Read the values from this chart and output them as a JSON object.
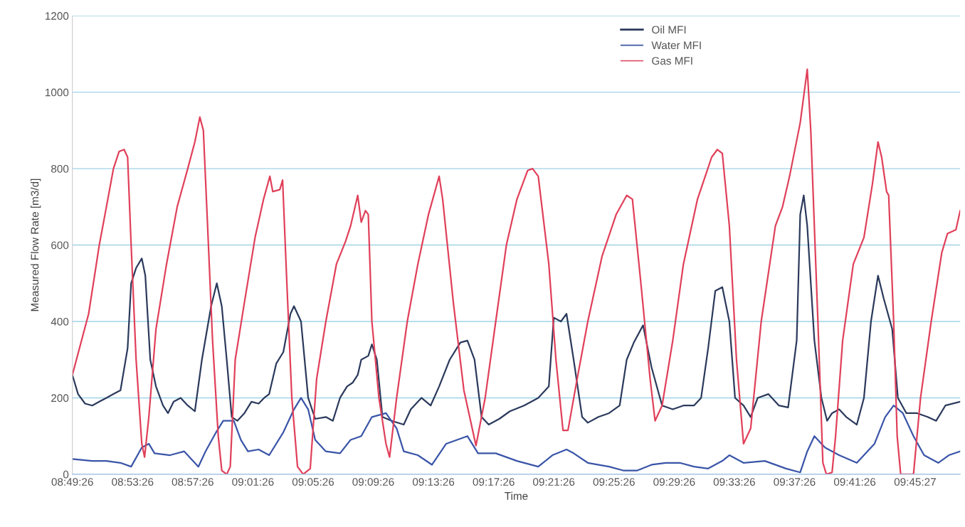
{
  "chart_data": {
    "type": "line",
    "xlabel": "Time",
    "ylabel": "Measured Flow Rate [m3/d]",
    "xlim": [
      8.8239,
      9.8074
    ],
    "ylim": [
      0,
      1200
    ],
    "yticks": [
      0,
      200,
      400,
      600,
      800,
      1000,
      1200
    ],
    "xticks": [
      {
        "value": 8.8239,
        "label": "08:49:26"
      },
      {
        "value": 8.8906,
        "label": "08:53:26"
      },
      {
        "value": 8.9572,
        "label": "08:57:26"
      },
      {
        "value": 9.0239,
        "label": "09:01:26"
      },
      {
        "value": 9.0906,
        "label": "09:05:26"
      },
      {
        "value": 9.1572,
        "label": "09:09:26"
      },
      {
        "value": 9.2239,
        "label": "09:13:26"
      },
      {
        "value": 9.2906,
        "label": "09:17:26"
      },
      {
        "value": 9.3572,
        "label": "09:21:26"
      },
      {
        "value": 9.4239,
        "label": "09:25:26"
      },
      {
        "value": 9.4906,
        "label": "09:29:26"
      },
      {
        "value": 9.5572,
        "label": "09:33:26"
      },
      {
        "value": 9.6239,
        "label": "09:37:26"
      },
      {
        "value": 9.6906,
        "label": "09:41:26"
      },
      {
        "value": 9.7575,
        "label": "09:45:27"
      }
    ],
    "grid": "y",
    "legend": "top right",
    "marker": "none",
    "line_style": "solid",
    "series": [
      {
        "name": "Oil MFI",
        "color": "#2b3a5c",
        "x": [
          8.8239,
          8.8302,
          8.838,
          8.8459,
          8.8537,
          8.8616,
          8.8694,
          8.8772,
          8.8851,
          8.889,
          8.8945,
          8.9008,
          8.9047,
          8.9102,
          8.9165,
          8.9243,
          8.9298,
          8.9361,
          8.9439,
          8.9517,
          8.9596,
          8.9674,
          8.9776,
          8.9839,
          8.9894,
          8.9949,
          9.0004,
          9.0066,
          9.0145,
          9.0223,
          9.0302,
          9.0364,
          9.0419,
          9.0498,
          9.0576,
          9.0655,
          9.0694,
          9.0772,
          9.0851,
          9.0929,
          9.1047,
          9.1125,
          9.1204,
          9.1282,
          9.1345,
          9.14,
          9.1439,
          9.1517,
          9.1557,
          9.1612,
          9.1674,
          9.1776,
          9.191,
          9.1988,
          9.2106,
          9.2208,
          9.2302,
          9.2419,
          9.2537,
          9.2615,
          9.2694,
          9.2772,
          9.2851,
          9.2968,
          9.3086,
          9.3243,
          9.34,
          9.3517,
          9.3572,
          9.3651,
          9.3713,
          9.3792,
          9.3886,
          9.3949,
          9.4066,
          9.4184,
          9.4302,
          9.438,
          9.4459,
          9.4561,
          9.4655,
          9.4772,
          9.489,
          9.5008,
          9.5125,
          9.5204,
          9.5282,
          9.5361,
          9.5439,
          9.5517,
          9.558,
          9.5674,
          9.5753,
          9.5831,
          9.5949,
          9.6066,
          9.6168,
          9.6263,
          9.6302,
          9.6341,
          9.638,
          9.6459,
          9.6537,
          9.66,
          9.6655,
          9.6733,
          9.6812,
          9.6929,
          9.7008,
          9.7086,
          9.7164,
          9.7227,
          9.7321,
          9.7384,
          9.7478,
          9.7596,
          9.7714,
          9.7808,
          9.791,
          9.8074
        ],
        "values": [
          260,
          210,
          185,
          180,
          190,
          200,
          210,
          220,
          330,
          500,
          540,
          565,
          520,
          300,
          230,
          180,
          160,
          190,
          200,
          180,
          165,
          300,
          440,
          500,
          440,
          300,
          150,
          140,
          160,
          190,
          185,
          200,
          210,
          290,
          320,
          420,
          440,
          400,
          200,
          145,
          150,
          140,
          200,
          230,
          240,
          260,
          300,
          310,
          340,
          300,
          150,
          140,
          130,
          170,
          200,
          180,
          230,
          300,
          345,
          350,
          300,
          150,
          130,
          145,
          165,
          180,
          200,
          230,
          410,
          400,
          420,
          300,
          150,
          135,
          150,
          160,
          180,
          300,
          345,
          390,
          280,
          180,
          170,
          180,
          180,
          200,
          330,
          480,
          490,
          400,
          200,
          180,
          150,
          200,
          210,
          180,
          175,
          350,
          680,
          730,
          650,
          350,
          200,
          140,
          160,
          170,
          150,
          130,
          200,
          400,
          520,
          460,
          380,
          200,
          160,
          160,
          150,
          140,
          180,
          190
        ]
      },
      {
        "name": "Water MFI",
        "color": "#3a55a8",
        "x": [
          8.8239,
          8.8459,
          8.8616,
          8.8772,
          8.889,
          8.9008,
          8.9086,
          8.9149,
          8.9321,
          8.9478,
          8.9635,
          8.9714,
          8.9831,
          8.991,
          9.0027,
          9.0106,
          9.0184,
          9.0302,
          9.0419,
          9.0576,
          9.0694,
          9.0772,
          9.0851,
          9.0929,
          9.1047,
          9.1204,
          9.1321,
          9.1439,
          9.1557,
          9.1713,
          9.1831,
          9.191,
          9.2066,
          9.2223,
          9.238,
          9.2615,
          9.2733,
          9.2929,
          9.3164,
          9.34,
          9.3557,
          9.3713,
          9.3792,
          9.3949,
          9.4184,
          9.4341,
          9.4498,
          9.4655,
          9.4812,
          9.4968,
          9.5125,
          9.5282,
          9.5439,
          9.5517,
          9.5674,
          9.591,
          9.6145,
          9.6302,
          9.638,
          9.6459,
          9.6576,
          9.6733,
          9.6929,
          9.7125,
          9.7243,
          9.7337,
          9.7439,
          9.7557,
          9.7674,
          9.7831,
          9.7949,
          9.8074
        ],
        "values": [
          40,
          35,
          35,
          30,
          20,
          70,
          80,
          55,
          50,
          60,
          20,
          60,
          110,
          140,
          140,
          90,
          60,
          65,
          50,
          110,
          170,
          200,
          170,
          90,
          60,
          55,
          90,
          100,
          150,
          160,
          120,
          60,
          50,
          25,
          80,
          100,
          55,
          55,
          35,
          20,
          50,
          65,
          55,
          30,
          20,
          10,
          10,
          25,
          30,
          30,
          20,
          15,
          35,
          50,
          30,
          35,
          15,
          5,
          60,
          100,
          70,
          50,
          30,
          80,
          150,
          180,
          160,
          100,
          50,
          30,
          50,
          60
        ]
      },
      {
        "name": "Gas MFI",
        "color": "#e0405a",
        "x": [
          8.8239,
          8.8419,
          8.8537,
          8.8616,
          8.8694,
          8.8757,
          8.8812,
          8.8851,
          8.889,
          8.8945,
          8.9008,
          8.9039,
          8.9086,
          8.9165,
          8.9282,
          8.94,
          8.9517,
          8.9596,
          8.9651,
          8.969,
          8.9737,
          8.9792,
          8.9855,
          8.9894,
          8.9949,
          8.9988,
          9.0043,
          9.0145,
          9.0263,
          9.0357,
          9.0427,
          9.0459,
          9.0537,
          9.0568,
          9.0615,
          9.067,
          9.0733,
          9.0796,
          9.0874,
          9.0945,
          9.1047,
          9.1164,
          9.1266,
          9.1321,
          9.14,
          9.1439,
          9.1486,
          9.1517,
          9.1557,
          9.1635,
          9.1713,
          9.1753,
          9.1831,
          9.1949,
          9.2066,
          9.2184,
          9.2302,
          9.2341,
          9.2459,
          9.2576,
          9.271,
          9.2812,
          9.2929,
          9.3047,
          9.3164,
          9.3282,
          9.3337,
          9.34,
          9.3517,
          9.3596,
          9.3674,
          9.3729,
          9.3831,
          9.3949,
          9.4106,
          9.4263,
          9.438,
          9.4443,
          9.4537,
          9.4639,
          9.4694,
          9.4772,
          9.489,
          9.5008,
          9.5164,
          9.5321,
          9.5384,
          9.5439,
          9.5517,
          9.5596,
          9.5674,
          9.5753,
          9.587,
          9.6027,
          9.6106,
          9.6184,
          9.6302,
          9.638,
          9.6419,
          9.6498,
          9.6553,
          9.6592,
          9.6655,
          9.6694,
          9.6772,
          9.689,
          9.7008,
          9.7102,
          9.7164,
          9.7204,
          9.7259,
          9.7282,
          9.7337,
          9.7376,
          9.7415,
          9.7557,
          9.7635,
          9.7753,
          9.787,
          9.7933,
          9.8027,
          9.8074
        ],
        "values": [
          260,
          420,
          600,
          700,
          800,
          845,
          850,
          830,
          600,
          300,
          80,
          45,
          150,
          380,
          550,
          700,
          800,
          870,
          935,
          900,
          650,
          350,
          100,
          10,
          0,
          20,
          300,
          450,
          620,
          720,
          780,
          740,
          745,
          770,
          500,
          200,
          20,
          0,
          15,
          250,
          400,
          550,
          610,
          650,
          730,
          660,
          690,
          680,
          400,
          200,
          80,
          45,
          200,
          400,
          550,
          680,
          780,
          720,
          450,
          220,
          75,
          200,
          400,
          600,
          720,
          795,
          800,
          780,
          550,
          300,
          115,
          115,
          250,
          400,
          570,
          680,
          730,
          720,
          500,
          250,
          140,
          180,
          350,
          550,
          720,
          830,
          850,
          840,
          650,
          300,
          80,
          120,
          400,
          650,
          700,
          780,
          920,
          1060,
          900,
          400,
          30,
          0,
          5,
          100,
          350,
          550,
          620,
          760,
          870,
          830,
          740,
          730,
          400,
          100,
          0,
          0,
          200,
          400,
          580,
          630,
          640,
          690
        ]
      }
    ]
  }
}
